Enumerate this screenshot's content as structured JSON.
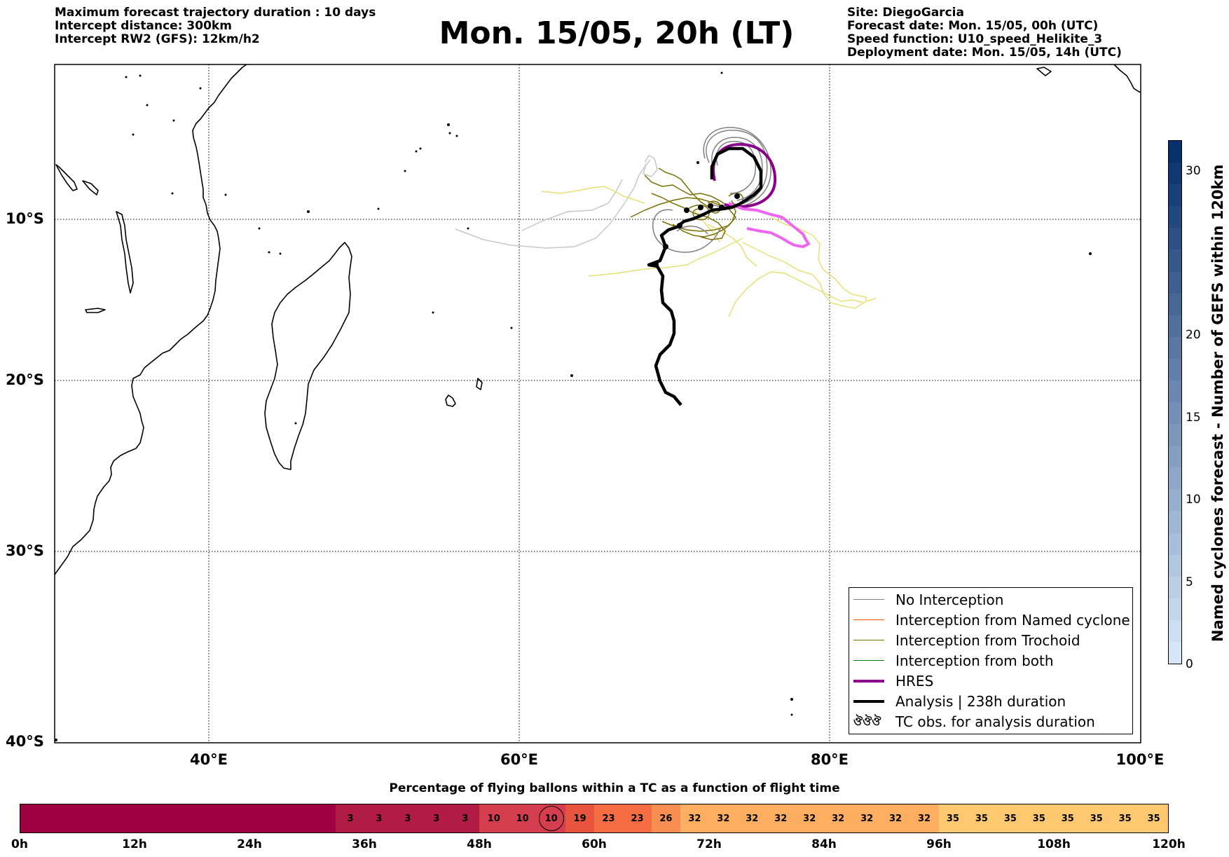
{
  "header_left": [
    "Maximum forecast trajectory duration : 10 days",
    "Intercept distance: 300km",
    "Intercept RW2 (GFS):  12km/h2"
  ],
  "title": "Mon. 15/05, 20h (LT)",
  "header_right": [
    "Site: DiegoGarcia",
    "Forecast date: Mon. 15/05, 00h (UTC)",
    "Speed function: U10_speed_Helikite_3",
    "Deployment date: Mon. 15/05, 14h (UTC)"
  ],
  "map": {
    "lat_labels": [
      "10°S",
      "20°S",
      "30°S",
      "40°S"
    ],
    "lon_labels": [
      "40°E",
      "60°E",
      "80°E",
      "100°E"
    ],
    "extent": {
      "lon_min": 30,
      "lon_max": 100,
      "lat_min": -40,
      "lat_max": 0.6
    },
    "gridlines": true
  },
  "legend": {
    "items": [
      {
        "label": "No Interception",
        "color": "#808080",
        "style": "thin"
      },
      {
        "label": "Interception from Named cyclone",
        "color": "#ff5500",
        "style": "thin"
      },
      {
        "label": "Interception from Trochoid",
        "color": "#7a7000",
        "style": "thin"
      },
      {
        "label": "Interception from both",
        "color": "#008000",
        "style": "thin"
      },
      {
        "label": "HRES",
        "color": "#8b008b",
        "style": "thick"
      },
      {
        "label": "Analysis | 238h duration",
        "color": "#000000",
        "style": "thick"
      },
      {
        "label": "TC obs. for analysis duration",
        "color": "#000000",
        "style": "symbol",
        "symbol": "ঔঔঔ"
      }
    ]
  },
  "colorbar": {
    "label": "Named cyclones forecast - Number of GEFS within 120km",
    "ticks": [
      "0",
      "5",
      "10",
      "15",
      "20",
      "30"
    ],
    "color_low": "#d6e6f6",
    "color_high": "#08306b"
  },
  "pct_panel": {
    "title": "Percentage of flying ballons within a TC as a function of flight time",
    "time_labels": [
      "0h",
      "12h",
      "24h",
      "36h",
      "48h",
      "60h",
      "72h",
      "84h",
      "96h",
      "108h",
      "120h"
    ],
    "values": [
      0,
      0,
      0,
      0,
      0,
      0,
      0,
      0,
      0,
      0,
      0,
      3,
      3,
      3,
      3,
      3,
      10,
      10,
      10,
      19,
      23,
      23,
      26,
      32,
      32,
      32,
      32,
      32,
      32,
      32,
      32,
      32,
      35,
      35,
      35,
      35,
      35,
      35,
      35,
      35
    ],
    "highlight_index": 18
  }
}
